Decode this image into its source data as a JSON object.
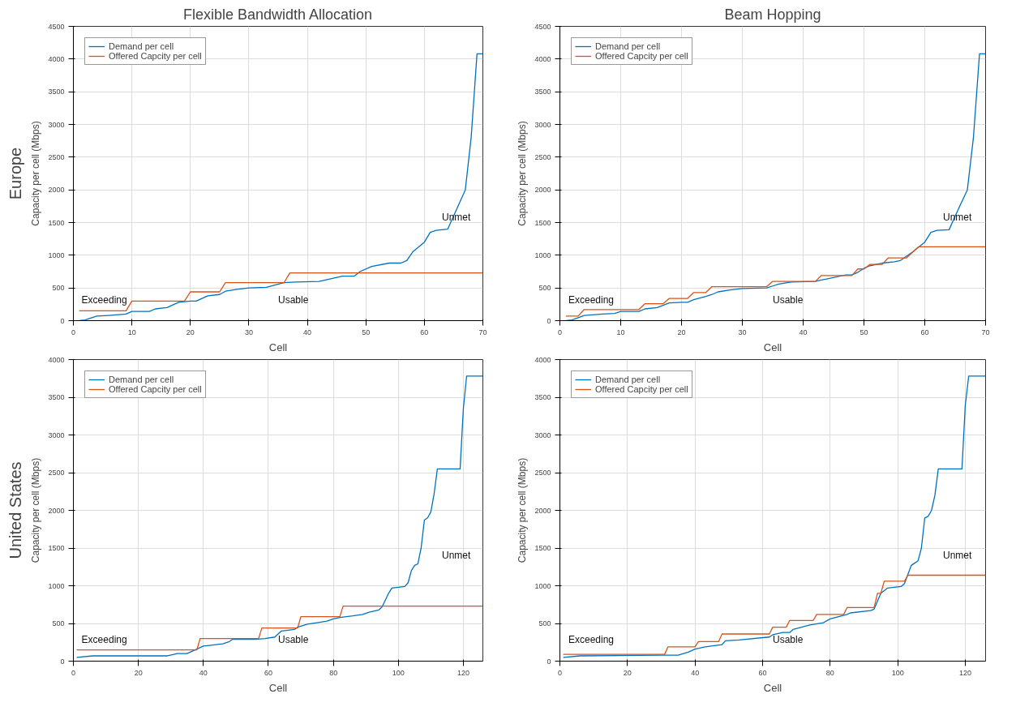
{
  "chart_data": [
    {
      "type": "line",
      "title": "Flexible Bandwidth Allocation",
      "xlabel": "Cell",
      "ylabel": "Capacity per cell (Mbps)",
      "xlim": [
        0,
        70
      ],
      "ylim": [
        0,
        4500
      ],
      "xticks": [
        0,
        10,
        20,
        30,
        40,
        50,
        60,
        70
      ],
      "yticks": [
        0,
        500,
        1000,
        1500,
        2000,
        2500,
        3000,
        3500,
        4000,
        4500
      ],
      "grid": true,
      "legend": "top left",
      "annotations": [
        "Europe",
        "Exceeding",
        "Usable",
        "Unmet"
      ],
      "series": [
        {
          "name": "Demand per cell",
          "color": "#0072bd",
          "x": [
            1,
            2,
            4,
            6,
            9,
            10,
            13,
            14,
            16,
            18,
            20,
            21,
            23,
            25,
            26,
            28,
            30,
            33,
            36,
            38,
            42,
            46,
            48,
            49,
            51,
            54,
            56,
            57,
            58,
            60,
            61,
            62,
            64,
            65,
            67,
            68,
            69,
            70
          ],
          "values": [
            0,
            10,
            70,
            80,
            100,
            140,
            140,
            180,
            200,
            280,
            300,
            300,
            380,
            400,
            450,
            480,
            500,
            510,
            580,
            590,
            600,
            680,
            680,
            750,
            830,
            880,
            880,
            920,
            1050,
            1200,
            1350,
            1380,
            1400,
            1600,
            2000,
            2800,
            4080,
            4080
          ]
        },
        {
          "name": "Offered Capcity per cell",
          "color": "#d95319",
          "x": [
            1,
            9,
            10,
            19,
            20,
            25,
            26,
            36,
            37,
            70
          ],
          "values": [
            150,
            150,
            300,
            300,
            440,
            440,
            580,
            580,
            730,
            730
          ]
        }
      ]
    },
    {
      "type": "line",
      "title": "Beam Hopping",
      "xlabel": "Cell",
      "ylabel": "Capacity per cell (Mbps)",
      "xlim": [
        0,
        70
      ],
      "ylim": [
        0,
        4500
      ],
      "xticks": [
        0,
        10,
        20,
        30,
        40,
        50,
        60,
        70
      ],
      "yticks": [
        0,
        500,
        1000,
        1500,
        2000,
        2500,
        3000,
        3500,
        4000,
        4500
      ],
      "grid": true,
      "legend": "top left",
      "annotations": [
        "Exceeding",
        "Usable",
        "Unmet"
      ],
      "series": [
        {
          "name": "Demand per cell",
          "color": "#0072bd",
          "x": [
            1,
            2,
            4,
            7,
            9,
            10,
            13,
            14,
            16,
            18,
            20,
            21,
            22,
            24,
            25,
            26,
            28,
            30,
            34,
            35,
            36,
            38,
            42,
            43,
            47,
            48,
            49,
            50,
            51,
            53,
            55,
            56,
            58,
            60,
            61,
            62,
            64,
            65,
            67,
            68,
            69,
            70
          ],
          "values": [
            0,
            10,
            80,
            100,
            110,
            140,
            140,
            180,
            200,
            270,
            280,
            280,
            320,
            370,
            400,
            440,
            470,
            490,
            500,
            530,
            560,
            590,
            600,
            620,
            700,
            700,
            740,
            800,
            840,
            880,
            900,
            920,
            1050,
            1200,
            1350,
            1380,
            1390,
            1600,
            2000,
            2800,
            4080,
            4080
          ]
        },
        {
          "name": "Offered Capcity per cell",
          "color": "#d95319",
          "x": [
            1,
            3,
            4,
            13,
            14,
            17,
            18,
            21,
            22,
            24,
            25,
            34,
            35,
            42,
            43,
            48,
            49,
            50,
            51,
            53,
            54,
            57,
            59,
            70
          ],
          "values": [
            70,
            70,
            170,
            170,
            260,
            260,
            340,
            340,
            430,
            430,
            520,
            520,
            600,
            600,
            690,
            690,
            790,
            790,
            860,
            860,
            960,
            960,
            1130,
            1130
          ]
        }
      ]
    },
    {
      "type": "line",
      "xlabel": "Cell",
      "ylabel": "Capacity per cell (Mbps)",
      "xlim": [
        0,
        126
      ],
      "ylim": [
        0,
        4000
      ],
      "xticks": [
        0,
        20,
        40,
        60,
        80,
        100,
        120
      ],
      "yticks": [
        0,
        500,
        1000,
        1500,
        2000,
        2500,
        3000,
        3500,
        4000
      ],
      "grid": true,
      "legend": "top left",
      "annotations": [
        "United States",
        "Exceeding",
        "Usable",
        "Unmet"
      ],
      "series": [
        {
          "name": "Demand per cell",
          "color": "#0072bd",
          "x": [
            1,
            6,
            29,
            32,
            35,
            38,
            40,
            46,
            48,
            49,
            56,
            59,
            62,
            64,
            68,
            69,
            72,
            75,
            78,
            80,
            82,
            86,
            89,
            91,
            94,
            95,
            97,
            98,
            102,
            103,
            104,
            105,
            106,
            107,
            108,
            109,
            110,
            111,
            112,
            119,
            120,
            121,
            126
          ],
          "values": [
            50,
            70,
            70,
            100,
            100,
            160,
            200,
            230,
            260,
            290,
            290,
            300,
            320,
            400,
            420,
            450,
            490,
            510,
            530,
            560,
            580,
            600,
            620,
            650,
            680,
            720,
            900,
            970,
            990,
            1040,
            1200,
            1270,
            1290,
            1500,
            1870,
            1900,
            1980,
            2220,
            2550,
            2550,
            3350,
            3780,
            3780
          ]
        },
        {
          "name": "Offered Capcity per cell",
          "color": "#d95319",
          "x": [
            1,
            38,
            39,
            57,
            58,
            69,
            70,
            82,
            83,
            126
          ],
          "values": [
            150,
            150,
            300,
            300,
            440,
            440,
            590,
            590,
            730,
            730
          ]
        }
      ]
    },
    {
      "type": "line",
      "xlabel": "Cell",
      "ylabel": "Capacity per cell (Mbps)",
      "xlim": [
        0,
        126
      ],
      "ylim": [
        0,
        4000
      ],
      "xticks": [
        0,
        20,
        40,
        60,
        80,
        100,
        120
      ],
      "yticks": [
        0,
        500,
        1000,
        1500,
        2000,
        2500,
        3000,
        3500,
        4000
      ],
      "grid": true,
      "legend": "top left",
      "annotations": [
        "Exceeding",
        "Usable",
        "Unmet"
      ],
      "series": [
        {
          "name": "Demand per cell",
          "color": "#0072bd",
          "x": [
            1,
            6,
            30,
            35,
            38,
            40,
            43,
            48,
            49,
            53,
            62,
            63,
            66,
            68,
            69,
            74,
            78,
            80,
            85,
            86,
            92,
            93,
            95,
            97,
            101,
            102,
            103,
            104,
            105,
            106,
            107,
            108,
            109,
            110,
            111,
            112,
            119,
            120,
            121,
            126
          ],
          "values": [
            50,
            70,
            80,
            80,
            120,
            160,
            190,
            220,
            270,
            280,
            320,
            350,
            380,
            380,
            420,
            480,
            510,
            560,
            620,
            640,
            670,
            690,
            900,
            970,
            990,
            1030,
            1150,
            1270,
            1300,
            1330,
            1500,
            1900,
            1920,
            2000,
            2200,
            2550,
            2550,
            3400,
            3780,
            3780
          ]
        },
        {
          "name": "Offered Capcity per cell",
          "color": "#d95319",
          "x": [
            1,
            31,
            32,
            40,
            41,
            47,
            48,
            62,
            63,
            67,
            68,
            75,
            76,
            84,
            85,
            93,
            94,
            95,
            96,
            102,
            103,
            126
          ],
          "values": [
            90,
            90,
            190,
            190,
            260,
            260,
            360,
            360,
            450,
            450,
            540,
            540,
            620,
            620,
            710,
            710,
            900,
            900,
            1060,
            1060,
            1140,
            1140
          ]
        }
      ]
    }
  ]
}
